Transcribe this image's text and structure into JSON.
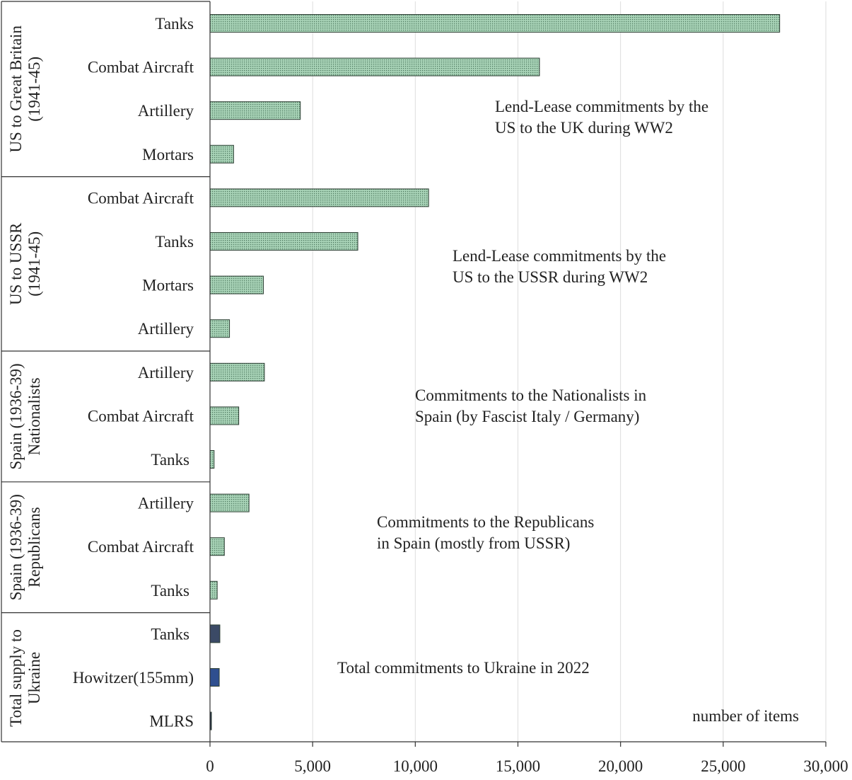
{
  "chart_data": {
    "type": "bar",
    "orientation": "horizontal",
    "xlabel": "number of items",
    "xlim": [
      0,
      30000
    ],
    "xticks": [
      0,
      5000,
      10000,
      15000,
      20000,
      25000,
      30000
    ],
    "xtick_labels": [
      "0",
      "5,000",
      "10,000",
      "15,000",
      "20,000",
      "25,000",
      "30,000"
    ],
    "grid": "vertical",
    "colors": {
      "historic": "#9ec9ae",
      "ukraine_tanks": "#3b4a66",
      "ukraine_howitzer": "#2f4f8f",
      "ukraine_mlrs": "#1f2a44"
    },
    "groups": [
      {
        "label_line1": "US to Great Britain",
        "label_line2": "(1941-45)",
        "annotation": [
          "Lend-Lease commitments by the",
          "US  to the UK during WW2"
        ],
        "bars": [
          {
            "category": "Tanks",
            "value": 27750,
            "color_key": "historic"
          },
          {
            "category": "Combat Aircraft",
            "value": 16050,
            "color_key": "historic"
          },
          {
            "category": "Artillery",
            "value": 4400,
            "color_key": "historic"
          },
          {
            "category": "Mortars",
            "value": 1150,
            "color_key": "historic"
          }
        ]
      },
      {
        "label_line1": "US to USSR",
        "label_line2": "(1941-45)",
        "annotation": [
          "Lend-Lease commitments by the",
          "US  to the USSR  during WW2"
        ],
        "bars": [
          {
            "category": "Combat Aircraft",
            "value": 10650,
            "color_key": "historic"
          },
          {
            "category": "Tanks",
            "value": 7200,
            "color_key": "historic"
          },
          {
            "category": "Mortars",
            "value": 2600,
            "color_key": "historic"
          },
          {
            "category": "Artillery",
            "value": 950,
            "color_key": "historic"
          }
        ]
      },
      {
        "label_line1": "Spain (1936-39)",
        "label_line2": "Nationalists",
        "annotation": [
          "Commitments to the Nationalists in",
          "Spain  (by Fascist Italy / Germany)"
        ],
        "bars": [
          {
            "category": "Artillery",
            "value": 2650,
            "color_key": "historic"
          },
          {
            "category": "Combat Aircraft",
            "value": 1400,
            "color_key": "historic"
          },
          {
            "category": "Tanks",
            "value": 200,
            "color_key": "historic"
          }
        ]
      },
      {
        "label_line1": "Spain (1936-39)",
        "label_line2": "Republicans",
        "annotation": [
          "Commitments to the Republicans",
          "in Spain (mostly from USSR)"
        ],
        "bars": [
          {
            "category": "Artillery",
            "value": 1900,
            "color_key": "historic"
          },
          {
            "category": "Combat Aircraft",
            "value": 700,
            "color_key": "historic"
          },
          {
            "category": "Tanks",
            "value": 350,
            "color_key": "historic"
          }
        ]
      },
      {
        "label_line1": "Total supply to",
        "label_line2": "Ukraine",
        "annotation": [
          "Total commitments to Ukraine in 2022"
        ],
        "bars": [
          {
            "category": "Tanks",
            "value": 480,
            "color_key": "ukraine_tanks"
          },
          {
            "category": "Howitzer(155mm)",
            "value": 450,
            "color_key": "ukraine_howitzer"
          },
          {
            "category": "MLRS",
            "value": 60,
            "color_key": "ukraine_mlrs"
          }
        ]
      }
    ]
  }
}
